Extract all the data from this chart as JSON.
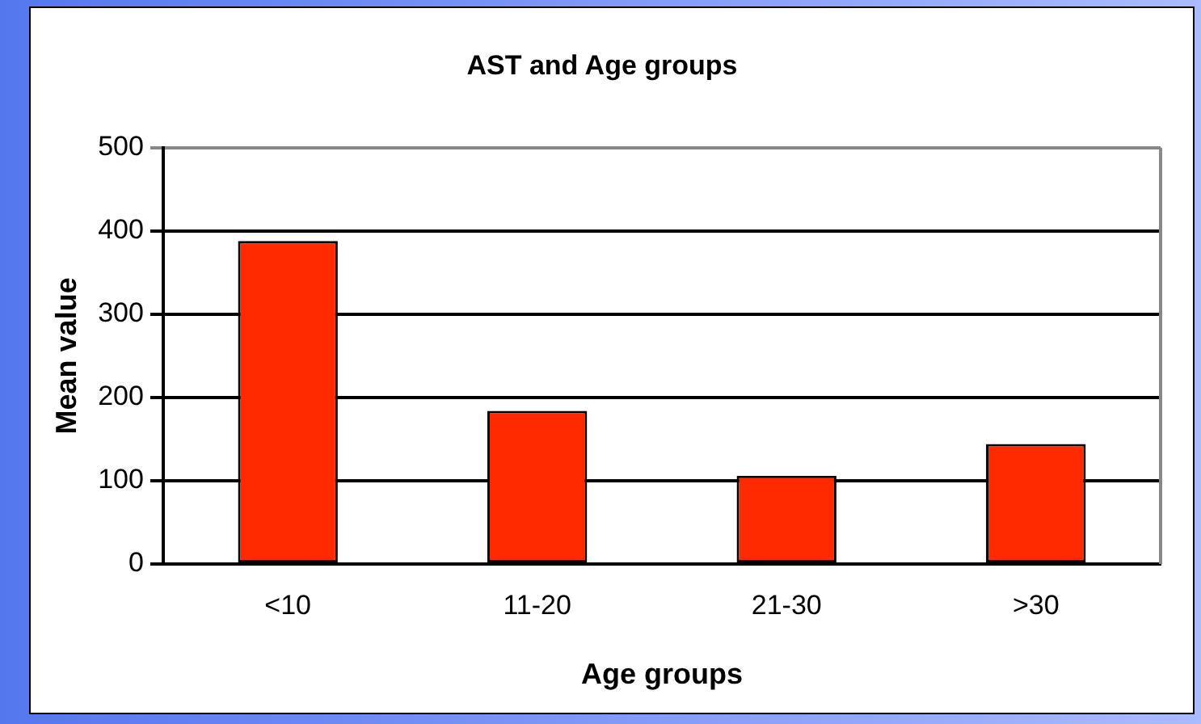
{
  "chart_data": {
    "type": "bar",
    "title": "AST and Age groups",
    "xlabel": "Age groups",
    "ylabel": "Mean value",
    "categories": [
      "<10",
      "11-20",
      "21-30",
      ">30"
    ],
    "values": [
      388,
      184,
      106,
      144
    ],
    "color": "#ff2a00",
    "ylim": [
      0,
      500
    ],
    "yticks": [
      0,
      100,
      200,
      300,
      400,
      500
    ],
    "grid": "y",
    "legend": false
  }
}
